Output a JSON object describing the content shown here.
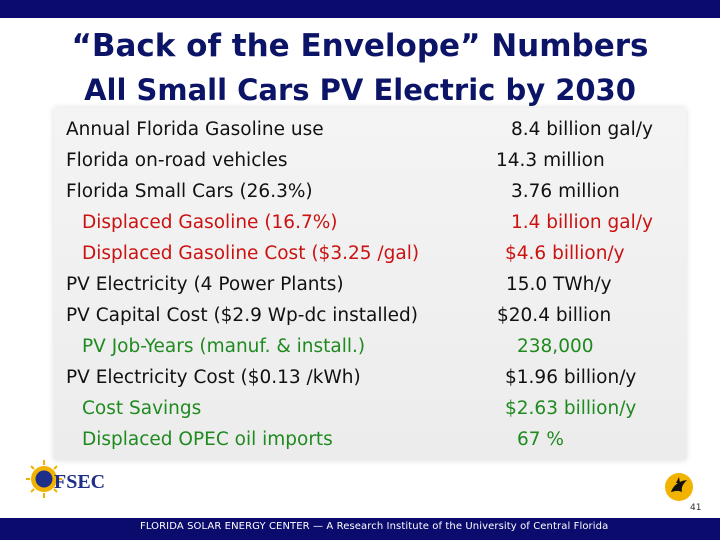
{
  "slide": {
    "title": "“Back of the Envelope” Numbers",
    "subtitle": "All Small Cars PV Electric by 2030",
    "page_number": "41",
    "footer": "FLORIDA SOLAR ENERGY CENTER — A Research Institute of the University of Central Florida"
  },
  "table": {
    "rows": [
      {
        "label": "Annual Florida Gasoline use",
        "value": "8.4 billion gal/y",
        "color": "#111111"
      },
      {
        "label": "Florida on-road vehicles",
        "value": "14.3 million",
        "color": "#111111"
      },
      {
        "label": "Florida Small Cars (26.3%)",
        "value": "3.76 million",
        "color": "#111111"
      },
      {
        "label": "Displaced Gasoline (16.7%)",
        "value": "1.4 billion gal/y",
        "color": "#cc1111"
      },
      {
        "label": "Displaced Gasoline Cost ($3.25 /gal)",
        "value": "$4.6 billion/y",
        "color": "#cc1111"
      },
      {
        "label": "PV Electricity (4 Power Plants)",
        "value": "15.0 TWh/y",
        "color": "#111111"
      },
      {
        "label": "PV Capital Cost ($2.9 Wp-dc installed)",
        "value": "$20.4 billion",
        "color": "#111111"
      },
      {
        "label": "PV Job-Years (manuf. & install.)",
        "value": "238,000",
        "color": "#1f8a1f"
      },
      {
        "label": "PV Electricity Cost ($0.13 /kWh)",
        "value": "$1.96 billion/y",
        "color": "#111111"
      },
      {
        "label": "Cost Savings",
        "value": "$2.63 billion/y",
        "color": "#1f8a1f"
      },
      {
        "label": "Displaced OPEC oil imports",
        "value": "67 %",
        "color": "#1f8a1f"
      }
    ]
  },
  "logos": {
    "fsec_text": "FSEC"
  },
  "colors": {
    "accent_navy": "#0b0b6e",
    "title_navy": "#0b1466",
    "red": "#cc1111",
    "green": "#1f8a1f",
    "gold": "#f2b300"
  }
}
